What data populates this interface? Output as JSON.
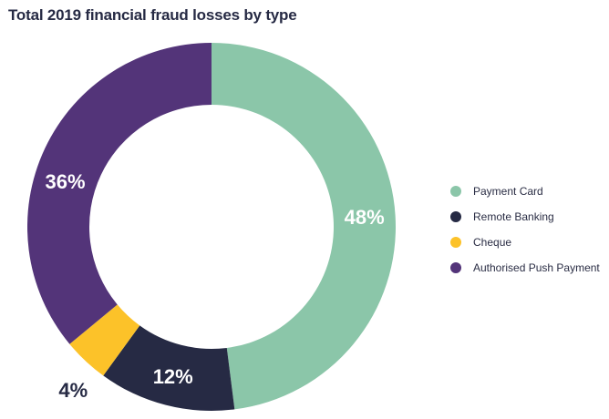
{
  "chart_data": {
    "type": "pie",
    "title": "Total 2019 financial fraud losses by type",
    "categories": [
      "Payment Card",
      "Remote Banking",
      "Cheque",
      "Authorised Push Payment"
    ],
    "values": [
      48,
      12,
      4,
      36
    ],
    "value_labels": [
      "48%",
      "12%",
      "4%",
      "36%"
    ],
    "colors": [
      "#8bc6a9",
      "#262a44",
      "#fcc229",
      "#533479"
    ],
    "donut": true,
    "legend": "right"
  }
}
